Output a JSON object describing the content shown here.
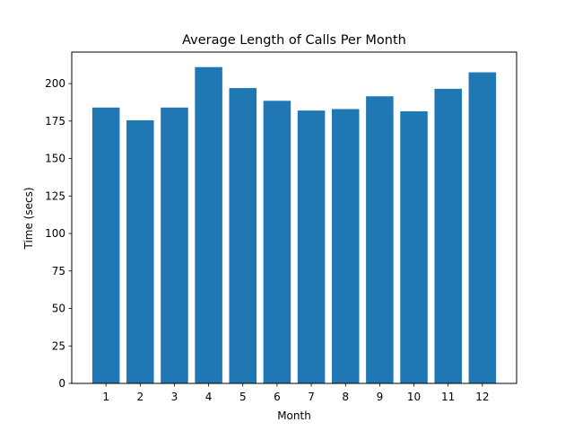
{
  "chart_data": {
    "type": "bar",
    "title": "Average Length of Calls Per Month",
    "xlabel": "Month",
    "ylabel": "Time (secs)",
    "categories": [
      "1",
      "2",
      "3",
      "4",
      "5",
      "6",
      "7",
      "8",
      "9",
      "10",
      "11",
      "12"
    ],
    "values": [
      184,
      175.5,
      184,
      211,
      197,
      188.5,
      182,
      183,
      191.5,
      181.5,
      196.5,
      207.5
    ],
    "ylim": [
      0,
      221
    ],
    "yticks": [
      0,
      25,
      50,
      75,
      100,
      125,
      150,
      175,
      200
    ],
    "grid": false,
    "legend": "none",
    "bar_color": "#1f77b4"
  }
}
